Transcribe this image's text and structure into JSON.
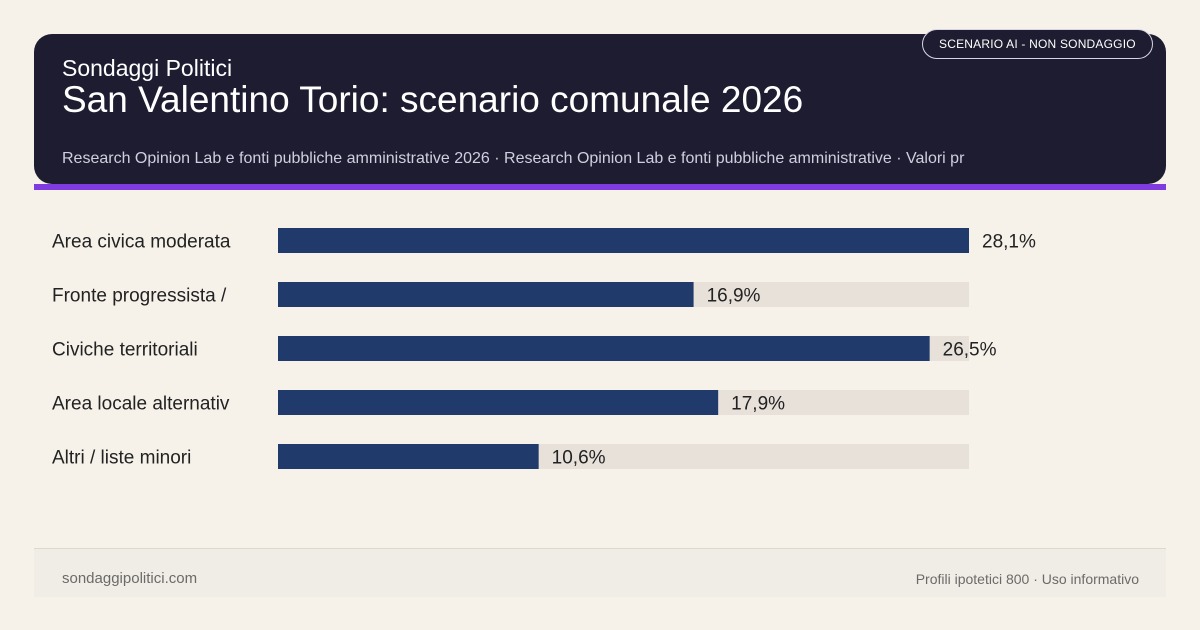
{
  "header": {
    "brand": "Sondaggi Politici",
    "title": "San Valentino Torio: scenario comunale 2026",
    "subtitle": "Research Opinion Lab e fonti pubbliche amministrative 2026 · Research Opinion Lab e fonti pubbliche amministrative · Valori pr",
    "badge": "SCENARIO AI - NON SONDAGGIO"
  },
  "colors": {
    "header_bg": "#1d1c30",
    "accent": "#7d3be0",
    "bar": "#1f3a6b",
    "track": "#e8e1da",
    "background": "#f6f2ea"
  },
  "chart_data": {
    "type": "bar",
    "orientation": "horizontal",
    "categories": [
      "Area civica moderata",
      "Fronte progressista /",
      "Civiche territoriali",
      "Area locale alternativ",
      "Altri / liste minori"
    ],
    "values": [
      28.1,
      16.9,
      26.5,
      17.9,
      10.6
    ],
    "value_labels": [
      "28,1%",
      "16,9%",
      "26,5%",
      "17,9%",
      "10,6%"
    ],
    "xlim": [
      0,
      28.1
    ],
    "grid": false,
    "legend": "none"
  },
  "footer": {
    "left": "sondaggipolitici.com",
    "right": "Profili ipotetici 800 · Uso informativo"
  }
}
